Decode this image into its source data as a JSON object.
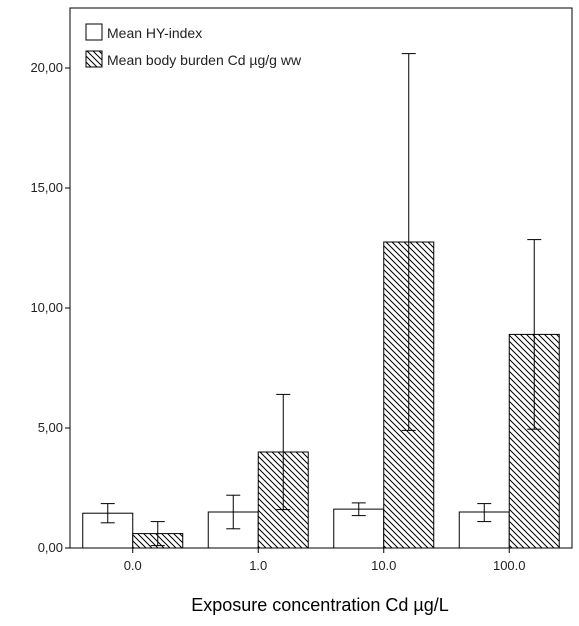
{
  "chart_data": {
    "type": "bar",
    "title": "",
    "xlabel": "Exposure concentration Cd µg/L",
    "ylabel": "",
    "ylim": [
      0,
      22.5
    ],
    "yticks": [
      0,
      5,
      10,
      15,
      20
    ],
    "ytick_labels": [
      "0,00",
      "5,00",
      "10,00",
      "15,00",
      "20,00"
    ],
    "categories": [
      "0.0",
      "1.0",
      "10.0",
      "100.0"
    ],
    "series": [
      {
        "name": "Mean HY-index",
        "pattern": "none",
        "values": [
          1.45,
          1.5,
          1.62,
          1.5
        ],
        "error_low": [
          1.05,
          0.8,
          1.35,
          1.1
        ],
        "error_high": [
          1.85,
          2.2,
          1.88,
          1.85
        ]
      },
      {
        "name": "Mean body burden Cd µg/g ww",
        "pattern": "diagonal-hatch",
        "values": [
          0.6,
          4.0,
          12.75,
          8.9
        ],
        "error_low": [
          0.1,
          1.6,
          4.9,
          4.95
        ],
        "error_high": [
          1.1,
          6.4,
          20.6,
          12.85
        ]
      }
    ],
    "legend_position": "top-left",
    "grid": false,
    "error_bars": true
  }
}
